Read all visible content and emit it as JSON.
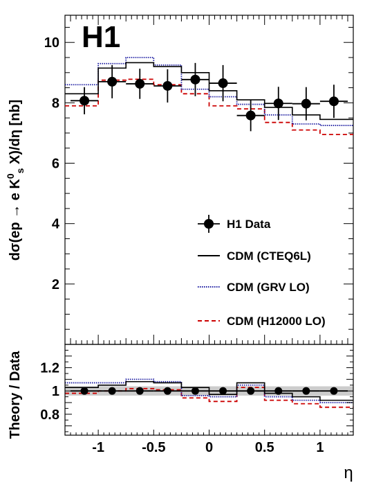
{
  "chart_data": [
    {
      "type": "line",
      "logo": "H1",
      "ylabel_parts": [
        "dσ(ep → e K",
        "0",
        "s",
        " X)/dη [nb]"
      ],
      "xlim": [
        -1.3,
        1.3
      ],
      "ylim": [
        0,
        10.9
      ],
      "yticks": [
        "2",
        "4",
        "6",
        "8",
        "10"
      ],
      "bin_edges": [
        -1.25,
        -1.0,
        -0.75,
        -0.5,
        -0.25,
        0.0,
        0.25,
        0.5,
        0.75,
        1.0,
        1.25
      ],
      "data": {
        "name": "H1 Data",
        "x": [
          -1.125,
          -0.875,
          -0.625,
          -0.375,
          -0.125,
          0.125,
          0.375,
          0.625,
          0.875,
          1.125
        ],
        "y": [
          8.07,
          8.7,
          8.63,
          8.56,
          8.77,
          8.65,
          7.58,
          7.98,
          7.97,
          8.05
        ],
        "err": [
          0.45,
          0.55,
          0.5,
          0.55,
          0.55,
          0.6,
          0.52,
          0.55,
          0.55,
          0.55
        ]
      },
      "series": [
        {
          "name": "CDM (CTEQ6L)",
          "values": [
            8.3,
            9.15,
            9.33,
            9.2,
            9.0,
            8.4,
            8.1,
            7.85,
            7.6,
            7.45
          ],
          "color": "#000000",
          "dash": ""
        },
        {
          "name": "CDM (GRV LO)",
          "values": [
            8.6,
            9.3,
            9.5,
            9.25,
            8.45,
            8.2,
            7.95,
            7.6,
            7.3,
            7.25
          ],
          "color": "#1a1aa0",
          "dash": "1.5,1.5"
        },
        {
          "name": "CDM (H12000 LO)",
          "values": [
            7.9,
            8.75,
            8.78,
            8.6,
            8.3,
            7.9,
            7.8,
            7.35,
            7.1,
            6.95
          ],
          "color": "#cc0000",
          "dash": "6,4"
        }
      ]
    },
    {
      "type": "line",
      "ylabel": "Theory / Data",
      "xlabel": "η",
      "xlim": [
        -1.3,
        1.3
      ],
      "ylim": [
        0.62,
        1.4
      ],
      "xticks": [
        "-1",
        "-0.5",
        "0",
        "0.5",
        "1"
      ],
      "xtick_values": [
        -1,
        -0.5,
        0,
        0.5,
        1
      ],
      "yticks": [
        "0.8",
        "1",
        "1.2"
      ],
      "ytick_values": [
        0.8,
        1.0,
        1.2
      ],
      "band": [
        0.96,
        1.04
      ],
      "data": {
        "x": [
          -1.125,
          -0.875,
          -0.625,
          -0.375,
          -0.125,
          0.125,
          0.375,
          0.625,
          0.875,
          1.125
        ],
        "y": [
          1,
          1,
          1,
          1,
          1,
          1,
          1,
          1,
          1,
          1
        ],
        "err": [
          0.02,
          0.02,
          0.02,
          0.02,
          0.03,
          0.03,
          0.03,
          0.03,
          0.03,
          0.03
        ]
      },
      "series": [
        {
          "name": "CDM (CTEQ6L)",
          "values": [
            1.03,
            1.05,
            1.08,
            1.07,
            1.03,
            0.97,
            1.07,
            0.98,
            0.95,
            0.92
          ],
          "color": "#000000",
          "dash": ""
        },
        {
          "name": "CDM (GRV LO)",
          "values": [
            1.07,
            1.07,
            1.1,
            1.08,
            0.96,
            0.95,
            1.05,
            0.95,
            0.92,
            0.9
          ],
          "color": "#1a1aa0",
          "dash": "1.5,1.5"
        },
        {
          "name": "CDM (H12000 LO)",
          "values": [
            0.98,
            1.0,
            1.02,
            1.01,
            0.94,
            0.91,
            1.03,
            0.92,
            0.89,
            0.86
          ],
          "color": "#cc0000",
          "dash": "6,4"
        }
      ]
    }
  ]
}
